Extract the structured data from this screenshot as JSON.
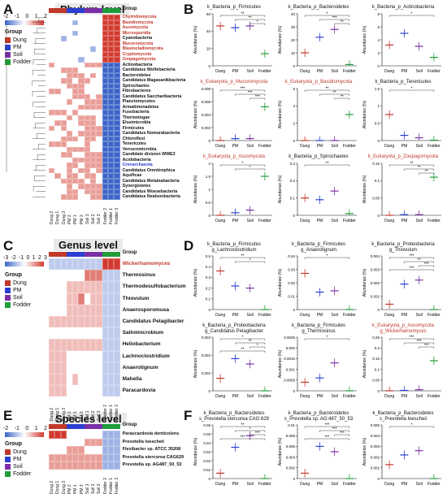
{
  "panels": {
    "A": "A",
    "B": "B",
    "C": "C",
    "D": "D",
    "E": "E",
    "F": "F"
  },
  "colors": {
    "dung": "#c0392b",
    "pm": "#2b3fd1",
    "soil": "#7b2fa6",
    "fodder": "#1f9d3a",
    "low": "#3b64c8",
    "mid": "#ffffff",
    "high": "#d23a2f"
  },
  "scale_ticks": [
    "-2",
    "-1",
    "0",
    "1",
    "2"
  ],
  "scale_ticks_c": [
    "-3",
    "-2",
    "-1",
    "0",
    "1",
    "2",
    "3"
  ],
  "legend": {
    "title": "Group",
    "items": [
      "Dung",
      "PM",
      "Soil",
      "Fodder"
    ]
  },
  "group_label": "Group",
  "columns": [
    "Dung 2",
    "Dung 1",
    "Dung 3",
    "PM 2",
    "PM 1",
    "PM 3",
    "Soil 1",
    "Soil 2",
    "Soil 3",
    "Fodder 2",
    "Fodder 1",
    "Fodder 3"
  ],
  "phylum": {
    "title": "Phylum level",
    "rows": [
      "Chytridiomycota",
      "Basidiomycota",
      "Ascomycota",
      "Microsporidia",
      "Cyanobacteria",
      "Mucoromycota",
      "Blastocladiomycota",
      "Cryptomycota",
      "Zoopagomycota",
      "Actinobacteria",
      "Candidatus Wolfebacteria",
      "Bacteroidetes",
      "Candidatus Magasanikbacteria",
      "Spirochaetes",
      "Fibrobacteres",
      "Candidatus Saccharibacteria",
      "Planctomycetes",
      "Armatimonadetes",
      "Fusobacteria",
      "Thermotogae",
      "Elusimicrobia",
      "Firmicutes",
      "Candidatus Nomurabacteria",
      "Chloroflexi",
      "Tenericutes",
      "Verrucomicrobia",
      "Candidate division WWE3",
      "Acidobacteria",
      "Crenarchaeota",
      "Candidatus Omnitrophica",
      "Aquificae",
      "Candidatus Melainabacteria",
      "Synergistetes",
      "Candidatus Woesebacteria",
      "Candidatus Nealsonbacteria"
    ],
    "matrix": [
      [
        0,
        0,
        0,
        0,
        0,
        0,
        0,
        0,
        0,
        2,
        2,
        2
      ],
      [
        0,
        0,
        0,
        0,
        -1,
        0,
        0,
        0,
        0,
        2,
        2,
        2
      ],
      [
        0,
        0,
        0,
        0,
        0,
        0,
        0,
        0,
        0,
        2,
        2,
        2
      ],
      [
        0,
        0,
        0,
        0,
        -1,
        0,
        0,
        0,
        0,
        2,
        2,
        2
      ],
      [
        0,
        0,
        -1,
        0,
        0,
        0,
        0,
        0,
        0,
        2,
        2,
        2
      ],
      [
        0,
        0,
        0,
        0,
        0,
        0,
        0,
        0,
        0,
        2,
        2,
        2
      ],
      [
        0,
        0,
        0,
        0,
        0,
        0,
        0,
        -1,
        0,
        2,
        2,
        2
      ],
      [
        0,
        0,
        0,
        0,
        0,
        0,
        0,
        0,
        0,
        2,
        2,
        2
      ],
      [
        0,
        0,
        0,
        0,
        0,
        -1,
        0,
        0,
        0,
        2,
        2,
        2
      ],
      [
        1,
        0,
        0,
        0,
        0,
        0,
        1,
        1,
        1,
        -2,
        -2,
        -2
      ],
      [
        0,
        0,
        1,
        1,
        1,
        0,
        0,
        0,
        0,
        -2,
        -2,
        -2
      ],
      [
        0,
        0,
        0,
        1,
        1,
        1,
        0,
        1,
        0,
        -2,
        -2,
        -2
      ],
      [
        0,
        0,
        1,
        1,
        0,
        1,
        1,
        0,
        0,
        -2,
        -2,
        -2
      ],
      [
        0,
        0,
        0,
        1,
        1,
        1,
        0,
        0,
        0,
        -2,
        -2,
        -2
      ],
      [
        1,
        1,
        0,
        0,
        1,
        1,
        0,
        0,
        0,
        -2,
        -2,
        -2
      ],
      [
        0,
        0,
        0,
        0,
        1,
        1,
        1,
        0,
        1,
        -2,
        -2,
        -2
      ],
      [
        0,
        0,
        0,
        1,
        0,
        0,
        1,
        1,
        1,
        -2,
        -2,
        -2
      ],
      [
        0,
        0,
        0,
        0,
        0,
        1,
        1,
        1,
        1,
        -2,
        -2,
        -2
      ],
      [
        1,
        1,
        1,
        0,
        1,
        0,
        0,
        0,
        0,
        -2,
        -2,
        -2
      ],
      [
        0,
        0,
        0,
        1,
        0,
        1,
        1,
        1,
        0,
        -2,
        -2,
        -2
      ],
      [
        0,
        1,
        1,
        0,
        0,
        1,
        1,
        1,
        0,
        -2,
        -2,
        -2
      ],
      [
        1,
        0,
        1,
        0,
        0,
        0,
        1,
        1,
        1,
        -2,
        -2,
        -2
      ],
      [
        0,
        0,
        0,
        1,
        0,
        1,
        1,
        1,
        1,
        -2,
        -2,
        -2
      ],
      [
        0,
        0,
        1,
        1,
        1,
        0,
        1,
        1,
        0,
        -2,
        -2,
        -2
      ],
      [
        1,
        1,
        1,
        0,
        0,
        0,
        1,
        0,
        0,
        -2,
        -2,
        -2
      ],
      [
        0,
        0,
        0,
        1,
        1,
        1,
        1,
        0,
        0,
        -2,
        -2,
        -2
      ],
      [
        0,
        0,
        1,
        1,
        0,
        0,
        1,
        1,
        1,
        -2,
        -2,
        -2
      ],
      [
        0,
        0,
        0,
        0,
        1,
        1,
        1,
        1,
        1,
        -2,
        -2,
        -2
      ],
      [
        0,
        0,
        0,
        1,
        1,
        0,
        1,
        1,
        1,
        -2,
        -2,
        -2
      ],
      [
        1,
        0,
        0,
        1,
        0,
        1,
        1,
        0,
        1,
        -2,
        -2,
        -2
      ],
      [
        0,
        1,
        0,
        1,
        1,
        0,
        1,
        1,
        0,
        -2,
        -2,
        -2
      ],
      [
        0,
        0,
        1,
        1,
        1,
        1,
        0,
        1,
        0,
        -2,
        -2,
        -2
      ],
      [
        0,
        0,
        0,
        1,
        0,
        1,
        1,
        1,
        1,
        -2,
        -2,
        -2
      ],
      [
        0,
        0,
        0,
        1,
        1,
        0,
        1,
        1,
        1,
        -2,
        -2,
        -2
      ],
      [
        0,
        0,
        1,
        1,
        1,
        0,
        0,
        1,
        1,
        -2,
        -2,
        -2
      ]
    ],
    "red_rows": [
      "Chytridiomycota",
      "Basidiomycota",
      "Ascomycota",
      "Microsporidia",
      "Mucoromycota",
      "Blastocladiomycota",
      "Cryptomycota",
      "Zoopagomycota"
    ],
    "blue_rows": [
      "Crenarchaeota"
    ]
  },
  "genus": {
    "title": "Genus level",
    "rows": [
      "Wickerhamomyces",
      "Thermosinus",
      "Thermodesulfobacterium",
      "Thiovulum",
      "Anaerosporomusa",
      "Candidatus Pelagibacter",
      "Salinimicrobium",
      "Heliobacterium",
      "Lachnoclostridium",
      "Anaerotignum",
      "Mahella",
      "Paracardovia"
    ],
    "matrix": [
      [
        -1,
        -1,
        -1,
        -1,
        -1,
        -1,
        -1,
        -1,
        -1,
        3,
        3,
        3
      ],
      [
        0,
        0,
        0,
        0,
        0,
        0,
        2,
        2,
        2,
        -1,
        -1,
        -1
      ],
      [
        0,
        0,
        0,
        1,
        1,
        1,
        1,
        1,
        1,
        -1,
        -1,
        -1
      ],
      [
        0,
        0,
        0,
        1,
        1,
        2,
        0,
        1,
        1,
        -1,
        -1,
        -1
      ],
      [
        0,
        0,
        0,
        1,
        1,
        1,
        1,
        1,
        1,
        -1,
        -1,
        -1
      ],
      [
        1,
        1,
        1,
        1,
        1,
        1,
        1,
        1,
        1,
        -1,
        -1,
        -1
      ],
      [
        0,
        0,
        0,
        0,
        0,
        0,
        0,
        0,
        0,
        -1,
        -1,
        -1
      ],
      [
        1,
        1,
        1,
        1,
        1,
        1,
        1,
        1,
        1,
        -1,
        -1,
        -1
      ],
      [
        1,
        1,
        1,
        0,
        0,
        0,
        0,
        0,
        0,
        -1,
        -1,
        -1
      ],
      [
        1,
        1,
        1,
        0,
        0,
        0,
        0,
        0,
        0,
        -1,
        -1,
        -1
      ],
      [
        1,
        1,
        1,
        0,
        1,
        0,
        0,
        0,
        0,
        -1,
        -1,
        -1
      ],
      [
        1,
        1,
        1,
        0,
        0,
        0,
        0,
        0,
        0,
        -1,
        -1,
        -1
      ]
    ],
    "red_rows": [
      "Wickerhamomyces"
    ]
  },
  "species": {
    "title": "Species level",
    "rows": [
      "Parascardovia denticolens",
      "Prevotella loescheii",
      "Flexibacter sp. ATCC 35208",
      "Prevotella stercorea CAG629",
      "Prevotella sp. AG487_50_53"
    ],
    "matrix": [
      [
        2,
        2,
        2,
        0,
        0,
        0,
        0,
        0,
        0,
        -1,
        -1,
        -1
      ],
      [
        0,
        0,
        0,
        0,
        0,
        0,
        1,
        1,
        1,
        -1,
        -1,
        -1
      ],
      [
        0,
        0,
        0,
        1,
        1,
        1,
        0,
        0,
        0,
        -1,
        -1,
        -1
      ],
      [
        1,
        1,
        1,
        1,
        1,
        1,
        1,
        1,
        1,
        -1,
        -1,
        -1
      ],
      [
        1,
        1,
        1,
        1,
        1,
        1,
        1,
        1,
        1,
        -1,
        -1,
        -1
      ]
    ]
  },
  "subplots_B": [
    {
      "title": "k_Bacteria_p_Firmicutes",
      "tcolor": "#111",
      "ylim": [
        0,
        60
      ],
      "ticks": [
        0,
        20,
        40,
        60
      ],
      "values": [
        46,
        44,
        46,
        14
      ],
      "sig": [
        "**",
        "**",
        "*"
      ]
    },
    {
      "title": "k_Bacteria_p_Bacteroidetes",
      "tcolor": "#111",
      "ylim": [
        0,
        40
      ],
      "ticks": [
        0,
        10,
        20,
        30,
        40
      ],
      "values": [
        10,
        22,
        28,
        1
      ],
      "sig": [
        "*",
        "***",
        "**"
      ]
    },
    {
      "title": "k_Bacteria_p_Actinobacteria",
      "tcolor": "#111",
      "ylim": [
        0,
        8
      ],
      "ticks": [
        0,
        2,
        4,
        6,
        8
      ],
      "values": [
        3.2,
        5,
        3,
        1.3
      ],
      "sig": [
        "*"
      ]
    },
    {
      "title": "k_Eukaryota_p_Mucoromycota",
      "tcolor": "#c0392b",
      "ylim": [
        0,
        0.008
      ],
      "ticks": [
        0,
        0.002,
        0.004,
        0.006,
        0.008
      ],
      "values": [
        0,
        0.0003,
        0.0003,
        0.0052
      ],
      "sig": [
        "***",
        "***",
        "***"
      ]
    },
    {
      "title": "k_Eukaryota_p_Basidiomycota",
      "tcolor": "#c0392b",
      "ylim": [
        0,
        6
      ],
      "ticks": [
        0,
        2,
        4,
        6
      ],
      "values": [
        0,
        0,
        0,
        3
      ],
      "sig": [
        "**",
        "**",
        "**"
      ]
    },
    {
      "title": "k_Bacteria_p_Tenericutes",
      "tcolor": "#111",
      "ylim": [
        0,
        1.5
      ],
      "ticks": [
        0,
        0.5,
        1.0,
        1.5
      ],
      "values": [
        0.75,
        0.15,
        0.08,
        0.01
      ],
      "sig": [
        "*"
      ]
    },
    {
      "title": "k_Eukaryota_p_Ascomycota",
      "tcolor": "#c0392b",
      "ylim": [
        0,
        2.0
      ],
      "ticks": [
        0,
        0.5,
        1.0,
        1.5,
        2.0
      ],
      "values": [
        0,
        0.1,
        0.2,
        1.5
      ],
      "sig": [
        "*",
        "*"
      ]
    },
    {
      "title": "k_Bacteria_p_Spirochaetes",
      "tcolor": "#111",
      "ylim": [
        0,
        0.3
      ],
      "ticks": [
        0,
        0.1,
        0.2,
        0.3
      ],
      "values": [
        0.1,
        0.09,
        0.14,
        0.01
      ],
      "sig": [
        "**"
      ]
    },
    {
      "title": "k_Eukaryota_p_Zoopagomycota",
      "tcolor": "#c0392b",
      "ylim": [
        0,
        0.15
      ],
      "ticks": [
        0,
        0.05,
        0.1,
        0.15
      ],
      "values": [
        0,
        0.002,
        0.002,
        0.11
      ],
      "sig": [
        "**",
        "**",
        "**"
      ]
    }
  ],
  "subplots_D": [
    {
      "title": "k_Bacteria_p_Firmicutes\ng_Lachnoclostridium",
      "tcolor": "#111",
      "ylim": [
        0,
        0.5
      ],
      "ticks": [
        0,
        0.1,
        0.2,
        0.3,
        0.4,
        0.5
      ],
      "values": [
        0.36,
        0.22,
        0.2,
        0
      ],
      "sig": [
        "**",
        "*"
      ]
    },
    {
      "title": "k_Bacteria_p_Firmicutes\ng_Anaerotignum",
      "tcolor": "#111",
      "ylim": [
        0,
        0.04
      ],
      "ticks": [
        0,
        0.01,
        0.02,
        0.03,
        0.04
      ],
      "values": [
        0.027,
        0.013,
        0.014,
        0
      ],
      "sig": [
        "*"
      ]
    },
    {
      "title": "k_Bacteria_p_Proteobacteria\ng_Thiovulum",
      "tcolor": "#111",
      "ylim": [
        0,
        0.004
      ],
      "ticks": [
        0,
        0.001,
        0.002,
        0.003,
        0.004
      ],
      "values": [
        0.0004,
        0.0019,
        0.0022,
        0
      ],
      "sig": [
        "***",
        "**",
        "***",
        "***"
      ]
    },
    {
      "title": "k_Bacteria_p_Proteobacteria\ng_Candidatus Pelagibacter",
      "tcolor": "#111",
      "ylim": [
        0,
        0.003
      ],
      "ticks": [
        0,
        0.001,
        0.002,
        0.003
      ],
      "values": [
        0.0007,
        0.0018,
        0.0015,
        0
      ],
      "sig": [
        "*",
        "**",
        "*",
        "**"
      ]
    },
    {
      "title": "k_Bacteria_p_Firmicutes\ng_Thermosinus",
      "tcolor": "#111",
      "ylim": [
        0,
        0.0025
      ],
      "ticks": [
        0,
        0.0005,
        0.001,
        0.0015,
        0.002,
        0.0025
      ],
      "values": [
        0.0004,
        0.0006,
        0.0013,
        0
      ],
      "sig": [
        "*"
      ]
    },
    {
      "title": "k_Eukaryota_p_Ascomycota\ng_Wickerhamomyces",
      "tcolor": "#c0392b",
      "ylim": [
        0,
        0.25
      ],
      "ticks": [
        0,
        0.05,
        0.1,
        0.15,
        0.2,
        0.25
      ],
      "values": [
        0,
        0.002,
        0.005,
        0.14
      ],
      "sig": [
        "***",
        "***",
        "***"
      ]
    }
  ],
  "subplots_F": [
    {
      "title": "k_Bacteria_p_Bacteroidetes\ns_Prevotella stercorea CAG:629",
      "tcolor": "#111",
      "ylim": [
        0,
        0.06
      ],
      "ticks": [
        0,
        0.01,
        0.02,
        0.03,
        0.04,
        0.05,
        0.06
      ],
      "values": [
        0.006,
        0.035,
        0.048,
        0
      ],
      "sig": [
        "**",
        "*",
        "***",
        "***"
      ]
    },
    {
      "title": "k_Bacteria_p_Bacteroidetes\ns_Prevotella sp. AG:487_50_53",
      "tcolor": "#111",
      "ylim": [
        0,
        0.01
      ],
      "ticks": [
        0,
        0.002,
        0.004,
        0.006,
        0.008,
        0.01
      ],
      "values": [
        0.001,
        0.006,
        0.005,
        0
      ],
      "sig": [
        "***",
        "***",
        "***",
        "***"
      ]
    },
    {
      "title": "k_Bacteria_p_Bacteroidetes\ns_Prevotella loescheii",
      "tcolor": "#111",
      "ylim": [
        0,
        0.005
      ],
      "ticks": [
        0,
        0.001,
        0.002,
        0.003,
        0.004,
        0.005
      ],
      "values": [
        0.0013,
        0.0022,
        0.0026,
        0
      ],
      "sig": [
        "*"
      ]
    }
  ],
  "xcats": [
    "Dung",
    "PM",
    "Soil",
    "Fodder"
  ],
  "ylabel": "Abundance (%)"
}
